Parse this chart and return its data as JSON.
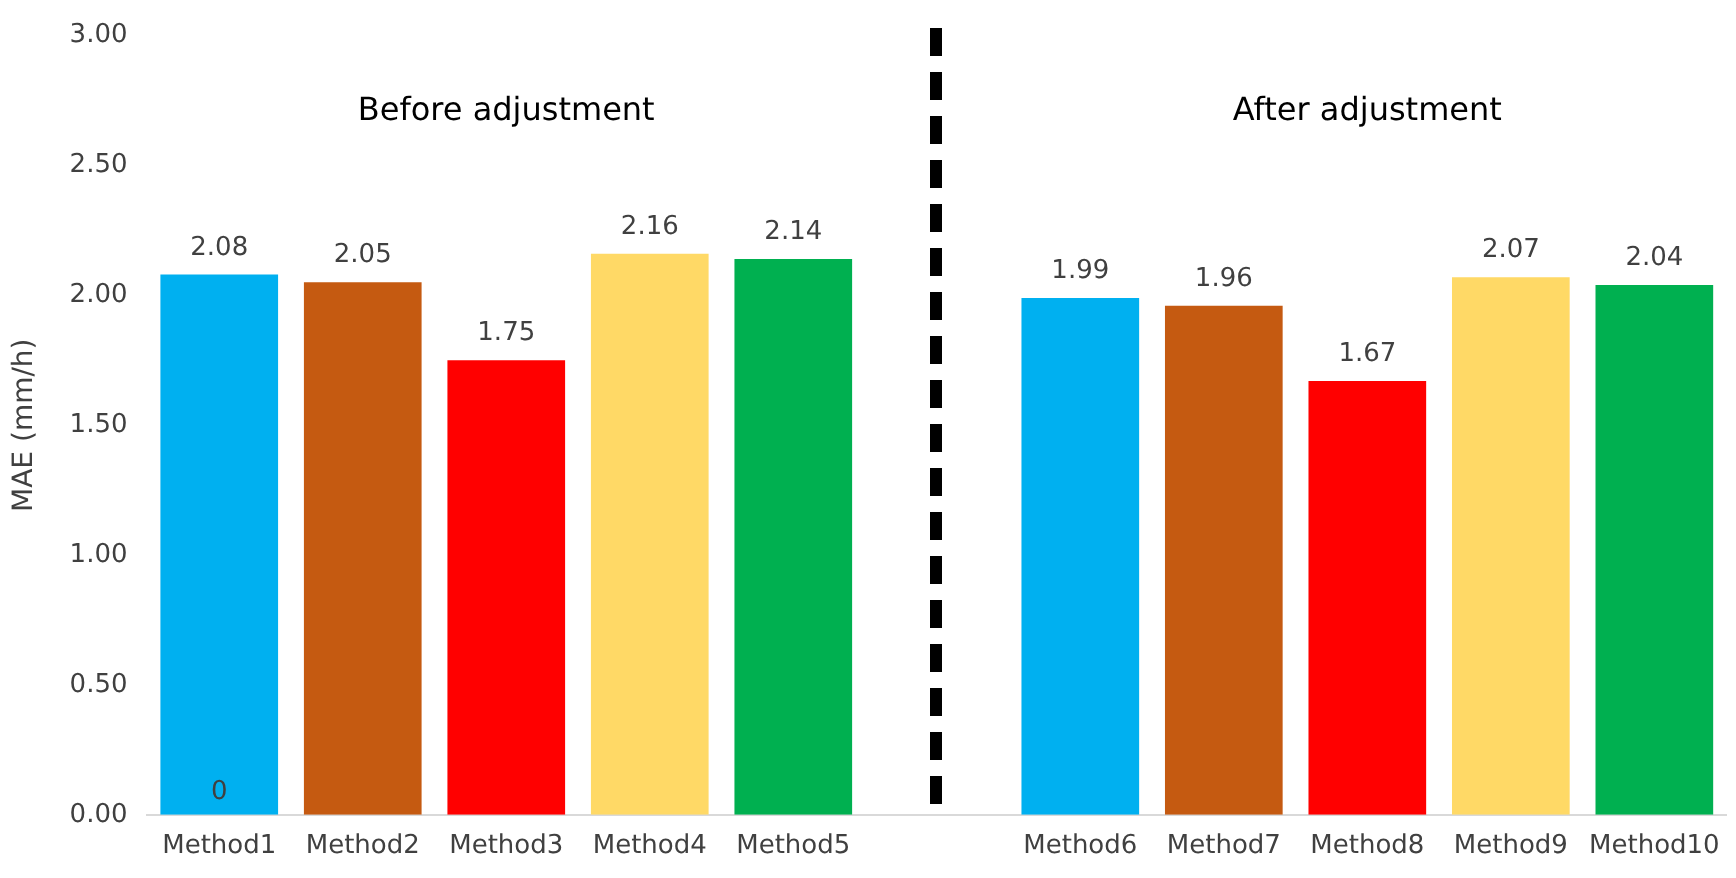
{
  "chart_data": {
    "type": "bar",
    "ylabel": "MAE (mm/h)",
    "categories": [
      "Method1",
      "Method2",
      "Method3",
      "Method4",
      "Method5",
      null,
      "Method6",
      "Method7",
      "Method8",
      "Method9",
      "Method10"
    ],
    "values": [
      2.08,
      2.05,
      1.75,
      2.16,
      2.14,
      null,
      1.99,
      1.96,
      1.67,
      2.07,
      2.04
    ],
    "colors": [
      "#00b0f0",
      "#c55a11",
      "#ff0000",
      "#ffd966",
      "#00b050",
      null,
      "#00b0f0",
      "#c55a11",
      "#ff0000",
      "#ffd966",
      "#00b050"
    ],
    "ylim": [
      0,
      3
    ],
    "yticks": [
      {
        "value": 0,
        "label": "0.00"
      },
      {
        "value": 0.5,
        "label": "0.50"
      },
      {
        "value": 1,
        "label": "1.00"
      },
      {
        "value": 1.5,
        "label": "1.50"
      },
      {
        "value": 2,
        "label": "2.00"
      },
      {
        "value": 2.5,
        "label": "2.50"
      },
      {
        "value": 3,
        "label": "3.00"
      }
    ],
    "data_labels": true,
    "grid": false,
    "legend": false,
    "annotations": [
      "Before adjustment",
      "After adjustment",
      {
        "text": "0",
        "x": "Method1",
        "y": 0
      }
    ]
  }
}
